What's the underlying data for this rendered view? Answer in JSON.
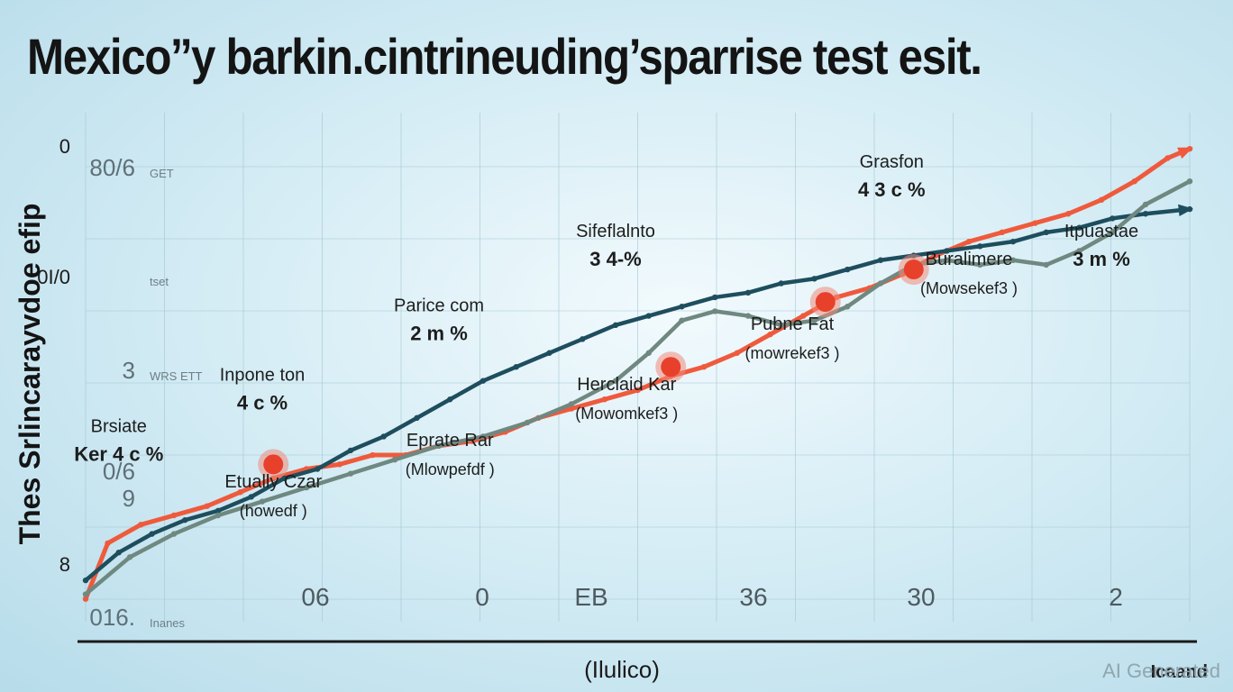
{
  "title": "Mexico’’y barkin.cintrineuding’sparrise test esit.",
  "watermark": "AI Generated",
  "chart_data": {
    "type": "line",
    "title": "Mexico’’y barkin.cintrineuding’sparrise test esit.",
    "xlabel": "(Ilulico)",
    "ylabel": "Thes Srlincarayvdoe efip",
    "legend": "Icaand",
    "x_ticks": [
      "06",
      "0",
      "EB",
      "36",
      "30",
      "2"
    ],
    "y_ticks": [
      {
        "main": "0",
        "sub": ""
      },
      {
        "main": "80/6",
        "sub": "GET"
      },
      {
        "main": "0I/0",
        "sub": "tset"
      },
      {
        "main": "3",
        "sub": "WRS ETT"
      },
      {
        "main": "0/6",
        "sub": ""
      },
      {
        "main": "9",
        "sub": ""
      },
      {
        "main": "8",
        "sub": ""
      },
      {
        "main": "016.",
        "sub": "Inanes"
      }
    ],
    "xlim": [
      0,
      100
    ],
    "ylim": [
      0,
      100
    ],
    "series": [
      {
        "color": "#ef5a3c",
        "x": [
          0,
          2,
          5,
          8,
          11,
          14,
          17,
          20,
          23,
          26,
          29,
          32,
          35,
          38,
          41,
          44,
          47,
          50,
          53,
          56,
          59,
          62,
          65,
          68,
          71,
          74,
          77,
          80,
          83,
          86,
          89,
          92,
          95,
          98,
          100
        ],
        "values": [
          2,
          14,
          18,
          20,
          22,
          25,
          28,
          30,
          31,
          33,
          33,
          35,
          36,
          38,
          41,
          43,
          45,
          47,
          50,
          52,
          55,
          59,
          63,
          67,
          69,
          72,
          76,
          79,
          81,
          83,
          85,
          88,
          92,
          97,
          99
        ]
      },
      {
        "color": "#1e4e5e",
        "x": [
          0,
          3,
          6,
          9,
          12,
          15,
          18,
          21,
          24,
          27,
          30,
          33,
          36,
          39,
          42,
          45,
          48,
          51,
          54,
          57,
          60,
          63,
          66,
          69,
          72,
          75,
          78,
          81,
          84,
          87,
          90,
          93,
          96,
          100
        ],
        "values": [
          6,
          12,
          16,
          19,
          21,
          24,
          28,
          30,
          34,
          37,
          41,
          45,
          49,
          52,
          55,
          58,
          61,
          63,
          65,
          67,
          68,
          70,
          71,
          73,
          75,
          76,
          77,
          78,
          79,
          81,
          82,
          84,
          85,
          86
        ]
      },
      {
        "color": "#6f8880",
        "x": [
          0,
          4,
          8,
          12,
          16,
          20,
          24,
          28,
          32,
          36,
          40,
          44,
          48,
          51,
          54,
          57,
          60,
          63,
          66,
          69,
          72,
          75,
          78,
          81,
          84,
          87,
          90,
          93,
          96,
          100
        ],
        "values": [
          3,
          11,
          16,
          20,
          23,
          26,
          29,
          32,
          35,
          37,
          40,
          44,
          49,
          55,
          62,
          64,
          63,
          61,
          62,
          65,
          70,
          74,
          75,
          74,
          75,
          74,
          77,
          81,
          87,
          92
        ]
      }
    ],
    "highlight_points": [
      {
        "x": 17,
        "y": 31
      },
      {
        "x": 53,
        "y": 52
      },
      {
        "x": 67,
        "y": 66
      },
      {
        "x": 75,
        "y": 73
      }
    ],
    "annotations": [
      {
        "title": "Brsiate",
        "value": "Ker  4 c %",
        "x": 3,
        "y": 38
      },
      {
        "title": "Inpone ton",
        "value": "4 c %",
        "x": 16,
        "y": 49
      },
      {
        "title": "Etually Czar",
        "value": "(howedf )",
        "x": 17,
        "y": 26
      },
      {
        "title": "Parice com",
        "value": "2 m %",
        "x": 32,
        "y": 64
      },
      {
        "title": "Eprate Rar",
        "value": "(Mlowpefdf )",
        "x": 33,
        "y": 35
      },
      {
        "title": "Sifeflalnto",
        "value": "3 4-%",
        "x": 48,
        "y": 80
      },
      {
        "title": "Herclaid Kar",
        "value": "(Mowomkef3 )",
        "x": 49,
        "y": 47
      },
      {
        "title": "Pubne Fat",
        "value": "(mowrekef3 )",
        "x": 64,
        "y": 60
      },
      {
        "title": "Grasfon",
        "value": "4 3 c %",
        "x": 73,
        "y": 95
      },
      {
        "title": "Buralimere",
        "value": "(Mowsekef3 )",
        "x": 80,
        "y": 74
      },
      {
        "title": "Itpuastae",
        "value": "3 m %",
        "x": 92,
        "y": 80
      }
    ]
  }
}
